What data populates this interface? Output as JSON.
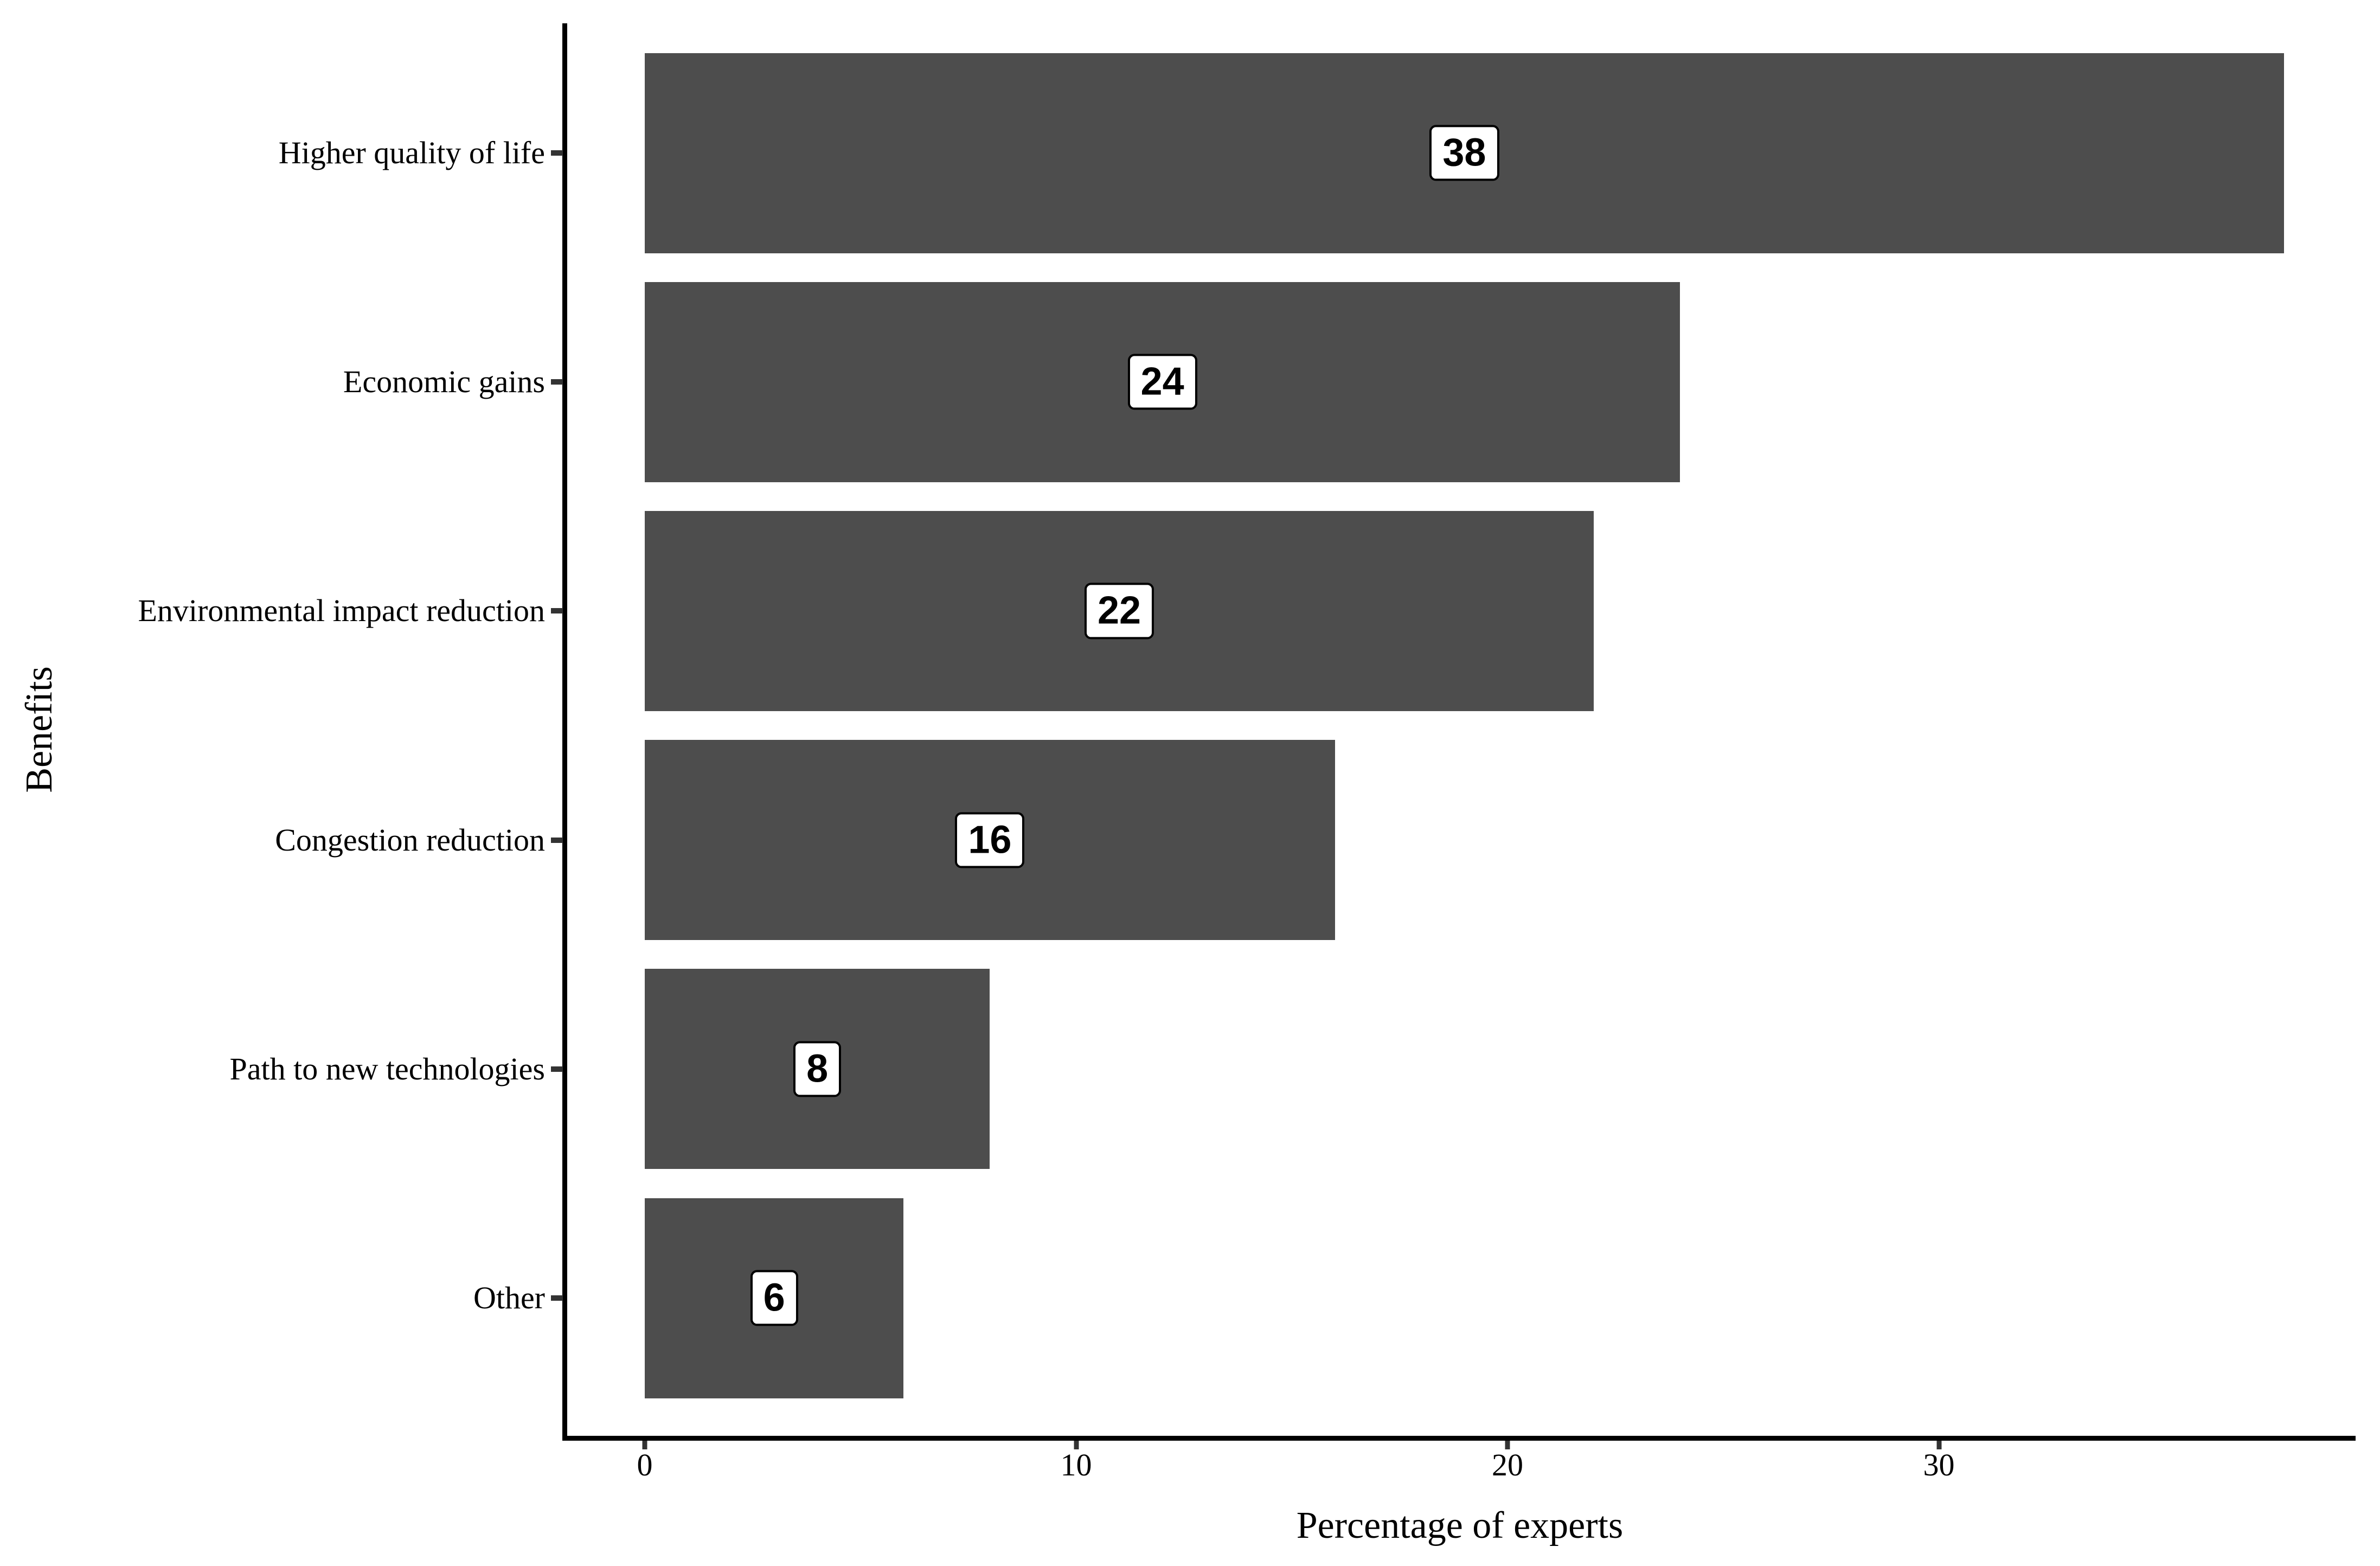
{
  "chart_data": {
    "type": "bar",
    "orientation": "horizontal",
    "title": "",
    "xlabel": "Percentage of experts",
    "ylabel": "Benefits",
    "categories": [
      "Higher quality of life",
      "Economic gains",
      "Environmental impact reduction",
      "Congestion reduction",
      "Path to new technologies",
      "Other"
    ],
    "values": [
      38,
      24,
      22,
      16,
      8,
      6
    ],
    "value_labels": [
      "38",
      "24",
      "22",
      "16",
      "8",
      "6"
    ],
    "x_ticks": [
      0,
      10,
      20,
      30
    ],
    "x_tick_labels": [
      "0",
      "10",
      "20",
      "30"
    ],
    "xlim": [
      -1.9,
      39.9
    ],
    "grid": false,
    "legend": false,
    "style": {
      "bar_color": "#4d4d4d",
      "axis_line_color": "#000000",
      "tick_color": "#333333",
      "text_color": "#000000",
      "value_label_bg": "#ffffff",
      "value_label_border": "#000000"
    }
  }
}
